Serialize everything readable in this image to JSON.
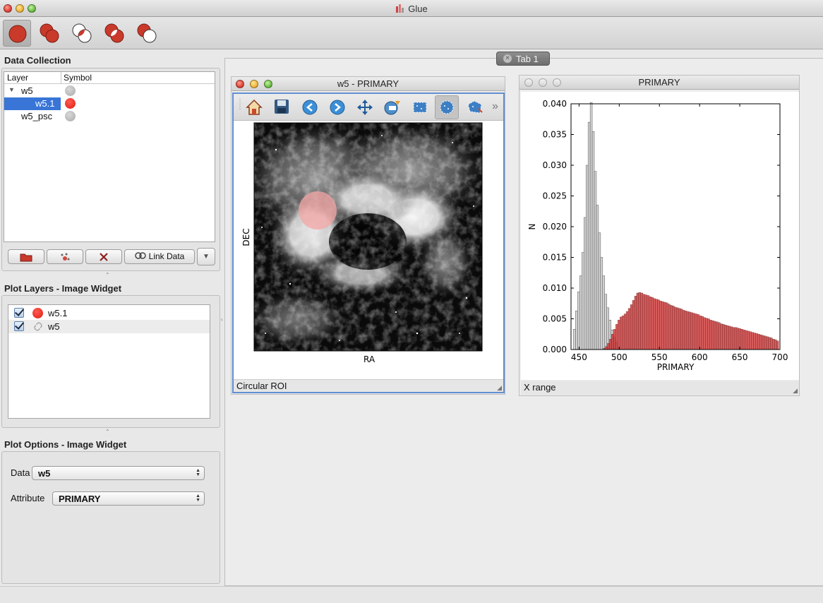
{
  "app": {
    "title": "Glue"
  },
  "toolbar": {
    "buttons": [
      {
        "name": "subset-replace-mode",
        "icon": "single-circle-icon"
      },
      {
        "name": "subset-union-mode",
        "icon": "union-circles-icon"
      },
      {
        "name": "subset-intersection-mode",
        "icon": "intersection-circles-icon"
      },
      {
        "name": "subset-xor-mode",
        "icon": "xor-circles-icon"
      },
      {
        "name": "subset-andnot-mode",
        "icon": "andnot-circles-icon"
      }
    ]
  },
  "data_collection": {
    "title": "Data Collection",
    "columns": [
      "Layer",
      "Symbol"
    ],
    "rows": [
      {
        "label": "w5",
        "symbol_color": "#a9a9a9",
        "expanded": true,
        "selected": false
      },
      {
        "label": "w5.1",
        "symbol_color": "#e01a10",
        "selected": true
      },
      {
        "label": "w5_psc",
        "symbol_color": "#a9a9a9",
        "selected": false
      }
    ],
    "buttons": {
      "link_data": "Link Data"
    }
  },
  "plot_layers": {
    "title": "Plot Layers - Image Widget",
    "items": [
      {
        "label": "w5.1",
        "checked": true,
        "icon": "red-circle-icon"
      },
      {
        "label": "w5",
        "checked": true,
        "icon": "link-icon"
      }
    ]
  },
  "plot_options": {
    "title": "Plot Options - Image Widget",
    "data_label": "Data",
    "data_value": "w5",
    "attribute_label": "Attribute",
    "attribute_value": "PRIMARY"
  },
  "tabs": [
    {
      "label": "Tab 1"
    }
  ],
  "image_window": {
    "title": "w5 - PRIMARY",
    "xlabel": "RA",
    "ylabel": "DEC",
    "status": "Circular ROI",
    "tools": [
      "home-icon",
      "save-icon",
      "back-icon",
      "forward-icon",
      "pan-icon",
      "contrast-icon",
      "rectangle-roi-icon",
      "circle-roi-icon",
      "polygon-roi-icon",
      "overflow-icon"
    ]
  },
  "histogram_window": {
    "title": "PRIMARY",
    "status": "X range"
  },
  "chart_data": {
    "type": "bar",
    "title": "",
    "xlabel": "PRIMARY",
    "ylabel": "N",
    "xlim": [
      440,
      700
    ],
    "ylim": [
      0,
      0.04
    ],
    "xticks": [
      "450",
      "500",
      "550",
      "600",
      "650",
      "700"
    ],
    "yticks": [
      "0.000",
      "0.005",
      "0.010",
      "0.015",
      "0.020",
      "0.025",
      "0.030",
      "0.035",
      "0.040"
    ],
    "series": [
      {
        "color": "#d3d3d3",
        "x_start": 443,
        "bin_width": 2.6,
        "values": [
          0.0033,
          0.0063,
          0.0094,
          0.012,
          0.0158,
          0.0215,
          0.03,
          0.037,
          0.0402,
          0.0355,
          0.029,
          0.0235,
          0.019,
          0.015,
          0.012,
          0.009,
          0.0068,
          0.0048,
          0.0032,
          0.002,
          0.0012
        ]
      },
      {
        "color": "#cc3333",
        "x_start": 480,
        "bin_width": 2.6,
        "values": [
          0.0002,
          0.0005,
          0.001,
          0.0017,
          0.0025,
          0.0033,
          0.0041,
          0.0048,
          0.0053,
          0.0055,
          0.0058,
          0.0062,
          0.0067,
          0.0073,
          0.008,
          0.0087,
          0.0092,
          0.0093,
          0.0092,
          0.009,
          0.0089,
          0.0088,
          0.0086,
          0.0085,
          0.0083,
          0.0082,
          0.0081,
          0.0079,
          0.0078,
          0.0077,
          0.0076,
          0.0074,
          0.0072,
          0.0071,
          0.0069,
          0.0068,
          0.0067,
          0.0066,
          0.0064,
          0.0063,
          0.0062,
          0.0061,
          0.006,
          0.0059,
          0.0058,
          0.0057,
          0.0055,
          0.0054,
          0.0052,
          0.0051,
          0.005,
          0.0048,
          0.0047,
          0.0046,
          0.0045,
          0.0044,
          0.0042,
          0.0041,
          0.004,
          0.0039,
          0.0038,
          0.0037,
          0.0036,
          0.0036,
          0.0035,
          0.0034,
          0.0033,
          0.0032,
          0.0031,
          0.003,
          0.0029,
          0.0028,
          0.0027,
          0.0026,
          0.0025,
          0.0024,
          0.0023,
          0.0022,
          0.0021,
          0.002,
          0.0019,
          0.0017,
          0.0016,
          0.0014
        ]
      }
    ]
  }
}
